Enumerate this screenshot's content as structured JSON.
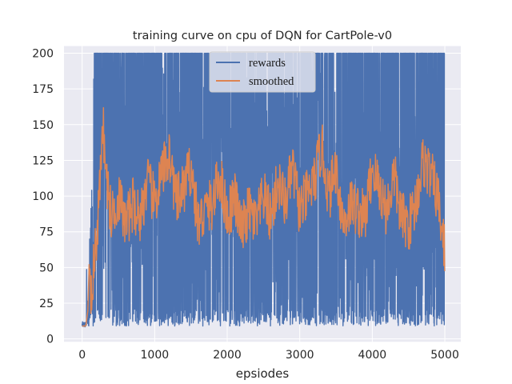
{
  "chart_data": {
    "type": "line",
    "title": "training curve on cpu of DQN for CartPole-v0",
    "xlabel": "epsiodes",
    "ylabel": "",
    "xlim": [
      -250,
      5220
    ],
    "ylim": [
      -2,
      205
    ],
    "xticks": [
      0,
      1000,
      2000,
      3000,
      4000,
      5000
    ],
    "xtick_labels": [
      "0",
      "1000",
      "2000",
      "3000",
      "4000",
      "5000"
    ],
    "yticks": [
      0,
      25,
      50,
      75,
      100,
      125,
      150,
      175,
      200
    ],
    "ytick_labels": [
      "0",
      "25",
      "50",
      "75",
      "100",
      "125",
      "150",
      "175",
      "200"
    ],
    "grid": true,
    "legend_position": "top-center",
    "episodes": 5000,
    "series": [
      {
        "name": "rewards",
        "color": "#4c72b0",
        "description": "raw per-episode reward, rapidly oscillating between ~10 and 200 after ~150 episodes",
        "min": 9,
        "max": 200
      },
      {
        "name": "smoothed",
        "color": "#dd8452",
        "description": "smoothed reward, rises from ~9 to ~60 by episode 100 and fluctuates mostly between 60 and 130",
        "keypoints": [
          [
            0,
            9
          ],
          [
            50,
            9
          ],
          [
            80,
            20
          ],
          [
            100,
            60
          ],
          [
            120,
            35
          ],
          [
            150,
            45
          ],
          [
            200,
            70
          ],
          [
            250,
            110
          ],
          [
            280,
            160
          ],
          [
            320,
            120
          ],
          [
            400,
            85
          ],
          [
            500,
            100
          ],
          [
            600,
            80
          ],
          [
            700,
            95
          ],
          [
            800,
            85
          ],
          [
            900,
            110
          ],
          [
            1000,
            95
          ],
          [
            1100,
            115
          ],
          [
            1200,
            130
          ],
          [
            1300,
            95
          ],
          [
            1400,
            105
          ],
          [
            1500,
            120
          ],
          [
            1600,
            80
          ],
          [
            1700,
            90
          ],
          [
            1800,
            95
          ],
          [
            1900,
            115
          ],
          [
            2000,
            85
          ],
          [
            2100,
            100
          ],
          [
            2200,
            75
          ],
          [
            2300,
            90
          ],
          [
            2400,
            80
          ],
          [
            2500,
            100
          ],
          [
            2600,
            85
          ],
          [
            2700,
            110
          ],
          [
            2800,
            95
          ],
          [
            2900,
            120
          ],
          [
            3000,
            90
          ],
          [
            3100,
            100
          ],
          [
            3200,
            110
          ],
          [
            3300,
            135
          ],
          [
            3400,
            100
          ],
          [
            3500,
            120
          ],
          [
            3600,
            80
          ],
          [
            3700,
            95
          ],
          [
            3800,
            90
          ],
          [
            3900,
            85
          ],
          [
            4000,
            120
          ],
          [
            4100,
            105
          ],
          [
            4200,
            90
          ],
          [
            4300,
            115
          ],
          [
            4400,
            85
          ],
          [
            4500,
            80
          ],
          [
            4600,
            95
          ],
          [
            4700,
            125
          ],
          [
            4800,
            115
          ],
          [
            4900,
            100
          ],
          [
            5000,
            60
          ]
        ]
      }
    ]
  }
}
